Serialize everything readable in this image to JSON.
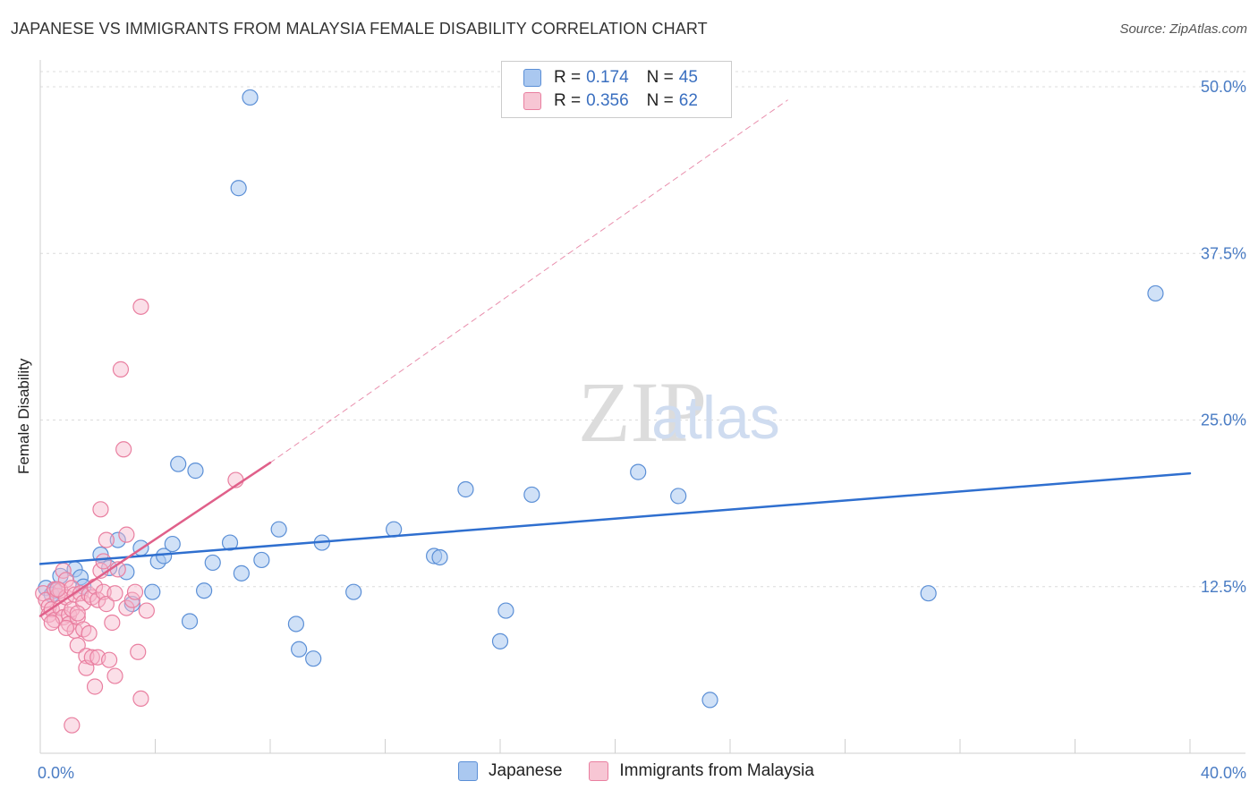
{
  "header": {
    "title": "JAPANESE VS IMMIGRANTS FROM MALAYSIA FEMALE DISABILITY CORRELATION CHART",
    "source": "Source: ZipAtlas.com"
  },
  "legend_top": {
    "rows": [
      {
        "r_label": "R =",
        "r_value": "0.174",
        "n_label": "N =",
        "n_value": "45"
      },
      {
        "r_label": "R =",
        "r_value": "0.356",
        "n_label": "N =",
        "n_value": "62"
      }
    ]
  },
  "watermark": {
    "zip": "ZIP",
    "atlas": "atlas"
  },
  "colors": {
    "japanese_fill": "#aac8f0",
    "japanese_stroke": "#5b8fd6",
    "japanese_line": "#2f6fcf",
    "malaysia_fill": "#f7b9cb",
    "malaysia_stroke": "#e97fa0",
    "malaysia_line": "#e0608a",
    "grid": "#dcdcdc",
    "tick_text": "#4a7cc4"
  },
  "chart_data": {
    "type": "scatter",
    "title": "JAPANESE VS IMMIGRANTS FROM MALAYSIA FEMALE DISABILITY CORRELATION CHART",
    "xlabel": "",
    "ylabel": "Female Disability",
    "xlim": [
      0,
      40
    ],
    "ylim": [
      0,
      50
    ],
    "x_tick_labels": [
      {
        "value": 0,
        "label": "0.0%"
      },
      {
        "value": 40,
        "label": "40.0%"
      }
    ],
    "y_tick_labels": [
      {
        "value": 12.5,
        "label": "12.5%"
      },
      {
        "value": 25,
        "label": "25.0%"
      },
      {
        "value": 37.5,
        "label": "37.5%"
      },
      {
        "value": 50,
        "label": "50.0%"
      }
    ],
    "x_minor_ticks": [
      0,
      4,
      8,
      12,
      16,
      20,
      24,
      28,
      32,
      36,
      40
    ],
    "series": [
      {
        "name": "Japanese",
        "points": [
          [
            0.2,
            12.4
          ],
          [
            0.5,
            12.2
          ],
          [
            0.7,
            13.3
          ],
          [
            1.2,
            13.8
          ],
          [
            1.4,
            13.2
          ],
          [
            1.5,
            12.5
          ],
          [
            2.1,
            14.9
          ],
          [
            2.4,
            13.9
          ],
          [
            2.7,
            16.0
          ],
          [
            3.0,
            13.6
          ],
          [
            3.2,
            11.2
          ],
          [
            3.5,
            15.4
          ],
          [
            3.9,
            12.1
          ],
          [
            4.1,
            14.4
          ],
          [
            4.3,
            14.8
          ],
          [
            4.6,
            15.7
          ],
          [
            4.8,
            21.7
          ],
          [
            5.2,
            9.9
          ],
          [
            5.4,
            21.2
          ],
          [
            5.7,
            12.2
          ],
          [
            6.0,
            14.3
          ],
          [
            6.6,
            15.8
          ],
          [
            7.0,
            13.5
          ],
          [
            7.7,
            14.5
          ],
          [
            7.3,
            49.2
          ],
          [
            6.9,
            42.4
          ],
          [
            8.3,
            16.8
          ],
          [
            8.9,
            9.7
          ],
          [
            9.0,
            7.8
          ],
          [
            9.5,
            7.1
          ],
          [
            9.8,
            15.8
          ],
          [
            10.9,
            12.1
          ],
          [
            12.3,
            16.8
          ],
          [
            13.7,
            14.8
          ],
          [
            13.9,
            14.7
          ],
          [
            14.8,
            19.8
          ],
          [
            16.0,
            8.4
          ],
          [
            16.2,
            10.7
          ],
          [
            17.1,
            19.4
          ],
          [
            20.8,
            21.1
          ],
          [
            22.2,
            19.3
          ],
          [
            23.3,
            4.0
          ],
          [
            30.9,
            12.0
          ],
          [
            38.8,
            34.5
          ],
          [
            0.4,
            11.9
          ]
        ]
      },
      {
        "name": "Immigrants from Malaysia",
        "points": [
          [
            0.1,
            12.0
          ],
          [
            0.2,
            11.5
          ],
          [
            0.3,
            11.0
          ],
          [
            0.3,
            10.4
          ],
          [
            0.4,
            10.8
          ],
          [
            0.5,
            12.3
          ],
          [
            0.5,
            10.0
          ],
          [
            0.6,
            11.8
          ],
          [
            0.7,
            12.2
          ],
          [
            0.7,
            10.9
          ],
          [
            0.8,
            10.2
          ],
          [
            0.8,
            13.7
          ],
          [
            0.9,
            13.0
          ],
          [
            0.9,
            11.7
          ],
          [
            1.0,
            10.4
          ],
          [
            1.0,
            9.7
          ],
          [
            1.1,
            12.4
          ],
          [
            1.1,
            10.8
          ],
          [
            1.2,
            11.9
          ],
          [
            1.2,
            9.2
          ],
          [
            1.3,
            8.1
          ],
          [
            1.3,
            10.2
          ],
          [
            1.4,
            12.0
          ],
          [
            1.5,
            11.3
          ],
          [
            1.5,
            9.3
          ],
          [
            1.6,
            7.3
          ],
          [
            1.6,
            6.4
          ],
          [
            1.7,
            11.9
          ],
          [
            1.8,
            11.7
          ],
          [
            1.8,
            7.2
          ],
          [
            1.9,
            12.5
          ],
          [
            1.9,
            5.0
          ],
          [
            2.0,
            11.5
          ],
          [
            2.0,
            7.2
          ],
          [
            2.1,
            13.7
          ],
          [
            2.1,
            18.3
          ],
          [
            2.2,
            12.1
          ],
          [
            2.2,
            14.4
          ],
          [
            2.3,
            11.2
          ],
          [
            2.4,
            7.0
          ],
          [
            2.5,
            9.8
          ],
          [
            2.6,
            12.0
          ],
          [
            2.6,
            5.8
          ],
          [
            2.8,
            28.8
          ],
          [
            2.9,
            22.8
          ],
          [
            3.0,
            10.9
          ],
          [
            3.0,
            16.4
          ],
          [
            3.2,
            11.5
          ],
          [
            3.3,
            12.1
          ],
          [
            3.4,
            7.6
          ],
          [
            3.5,
            4.1
          ],
          [
            3.5,
            33.5
          ],
          [
            3.7,
            10.7
          ],
          [
            1.1,
            2.1
          ],
          [
            0.6,
            12.3
          ],
          [
            0.9,
            9.4
          ],
          [
            0.4,
            9.8
          ],
          [
            1.7,
            9.0
          ],
          [
            1.3,
            10.5
          ],
          [
            2.7,
            13.8
          ],
          [
            6.8,
            20.5
          ],
          [
            2.3,
            16.0
          ]
        ]
      }
    ],
    "trend_lines": [
      {
        "series": "Japanese",
        "x": [
          0,
          40
        ],
        "y": [
          14.2,
          21.0
        ],
        "style": "solid"
      },
      {
        "series": "Immigrants from Malaysia",
        "x": [
          0,
          8.0
        ],
        "y": [
          10.3,
          21.8
        ],
        "style": "solid"
      },
      {
        "series": "Immigrants from Malaysia",
        "x": [
          8.0,
          26.0
        ],
        "y": [
          21.8,
          49.0
        ],
        "style": "dashed"
      }
    ],
    "legend": {
      "placement": "bottom-center",
      "entries": [
        "Japanese",
        "Immigrants from Malaysia"
      ]
    }
  }
}
